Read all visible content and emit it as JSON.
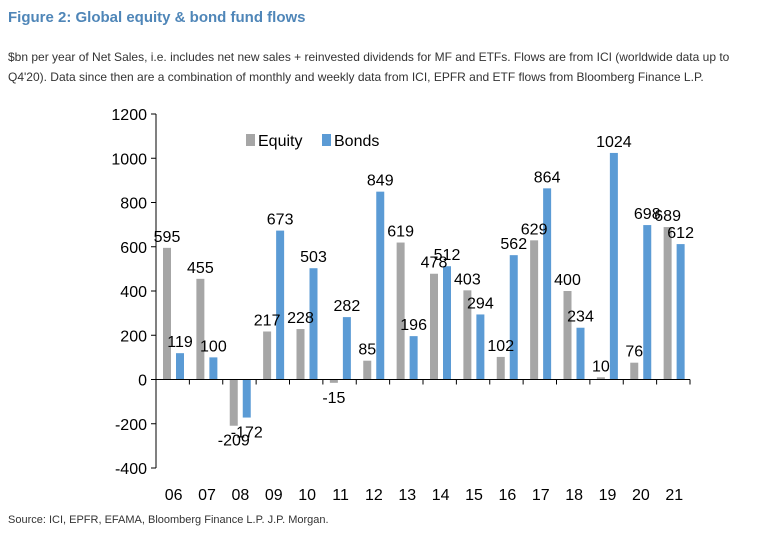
{
  "header": {
    "title": "Figure 2: Global equity & bond fund flows",
    "subtitle": "$bn per year of Net Sales, i.e. includes net new sales + reinvested dividends for MF and ETFs. Flows are from ICI (worldwide data up to Q4'20). Data since then are a combination of monthly and weekly data from ICI, EPFR and ETF flows from Bloomberg Finance L.P."
  },
  "footer": {
    "source": "Source: ICI, EPFR, EFAMA, Bloomberg Finance L.P. J.P. Morgan."
  },
  "colors": {
    "equity": "#a6a6a6",
    "bonds": "#5b9bd5",
    "title": "#4f86b8"
  },
  "chart_data": {
    "type": "bar",
    "title": "",
    "xlabel": "",
    "ylabel": "",
    "ylim": [
      -400,
      1200
    ],
    "yticks": [
      -400,
      -200,
      0,
      200,
      400,
      600,
      800,
      1000,
      1200
    ],
    "grid": false,
    "legend_position": "top-left",
    "categories": [
      "06",
      "07",
      "08",
      "09",
      "10",
      "11",
      "12",
      "13",
      "14",
      "15",
      "16",
      "17",
      "18",
      "19",
      "20",
      "21"
    ],
    "series": [
      {
        "name": "Equity",
        "values": [
          595,
          455,
          -209,
          217,
          228,
          -15,
          85,
          619,
          478,
          403,
          102,
          629,
          400,
          10,
          76,
          689
        ]
      },
      {
        "name": "Bonds",
        "values": [
          119,
          100,
          -172,
          673,
          503,
          282,
          849,
          196,
          512,
          294,
          562,
          864,
          234,
          1024,
          698,
          612
        ]
      }
    ]
  }
}
